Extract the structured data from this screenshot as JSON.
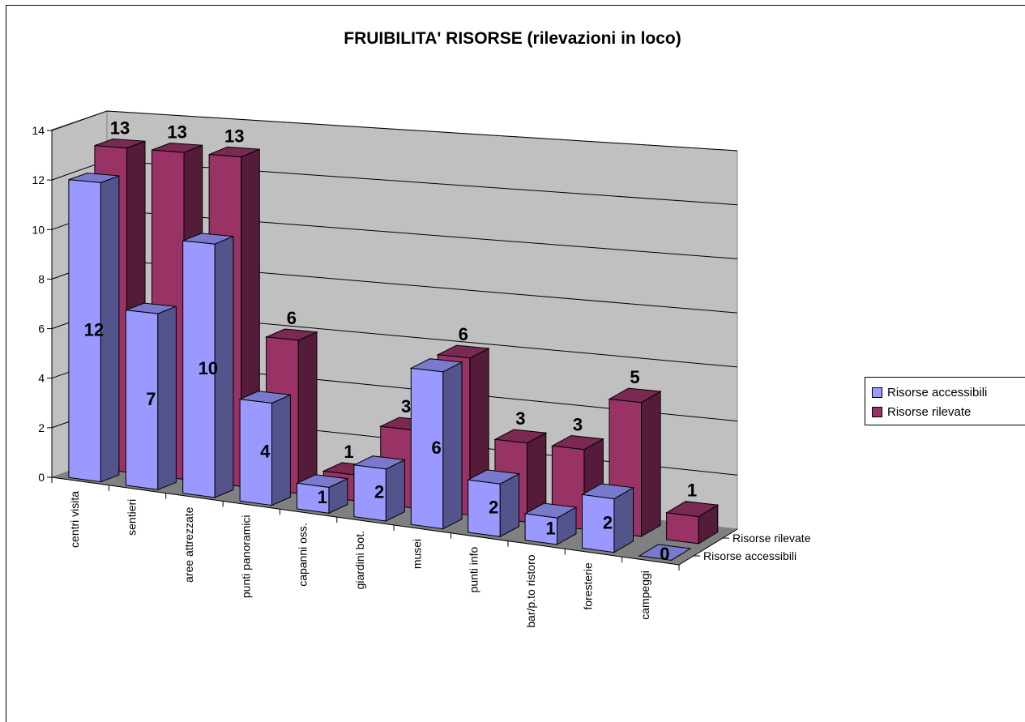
{
  "chart_data": {
    "type": "bar",
    "title": "FRUIBILITA' RISORSE (rilevazioni in loco)",
    "categories": [
      "centri visita",
      "sentieri",
      "aree attrezzate",
      "punti panoramici",
      "capanni oss.",
      "giardini bot.",
      "musei",
      "punti info",
      "bar/p.to ristoro",
      "foresterie",
      "campeggi"
    ],
    "series": [
      {
        "name": "Risorse accessibili",
        "values": [
          12,
          7,
          10,
          4,
          1,
          2,
          6,
          2,
          1,
          2,
          0
        ],
        "color": "#9999ff"
      },
      {
        "name": "Risorse rilevate",
        "values": [
          13,
          13,
          13,
          6,
          1,
          3,
          6,
          3,
          3,
          5,
          1
        ],
        "color": "#993366"
      }
    ],
    "ylim": [
      0,
      14
    ],
    "yticks": [
      "0",
      "2",
      "4",
      "6",
      "8",
      "10",
      "12",
      "14"
    ],
    "depth_labels": [
      "Risorse rilevate",
      "Risorse accessibili"
    ],
    "grid": true,
    "legend_position": "right"
  }
}
